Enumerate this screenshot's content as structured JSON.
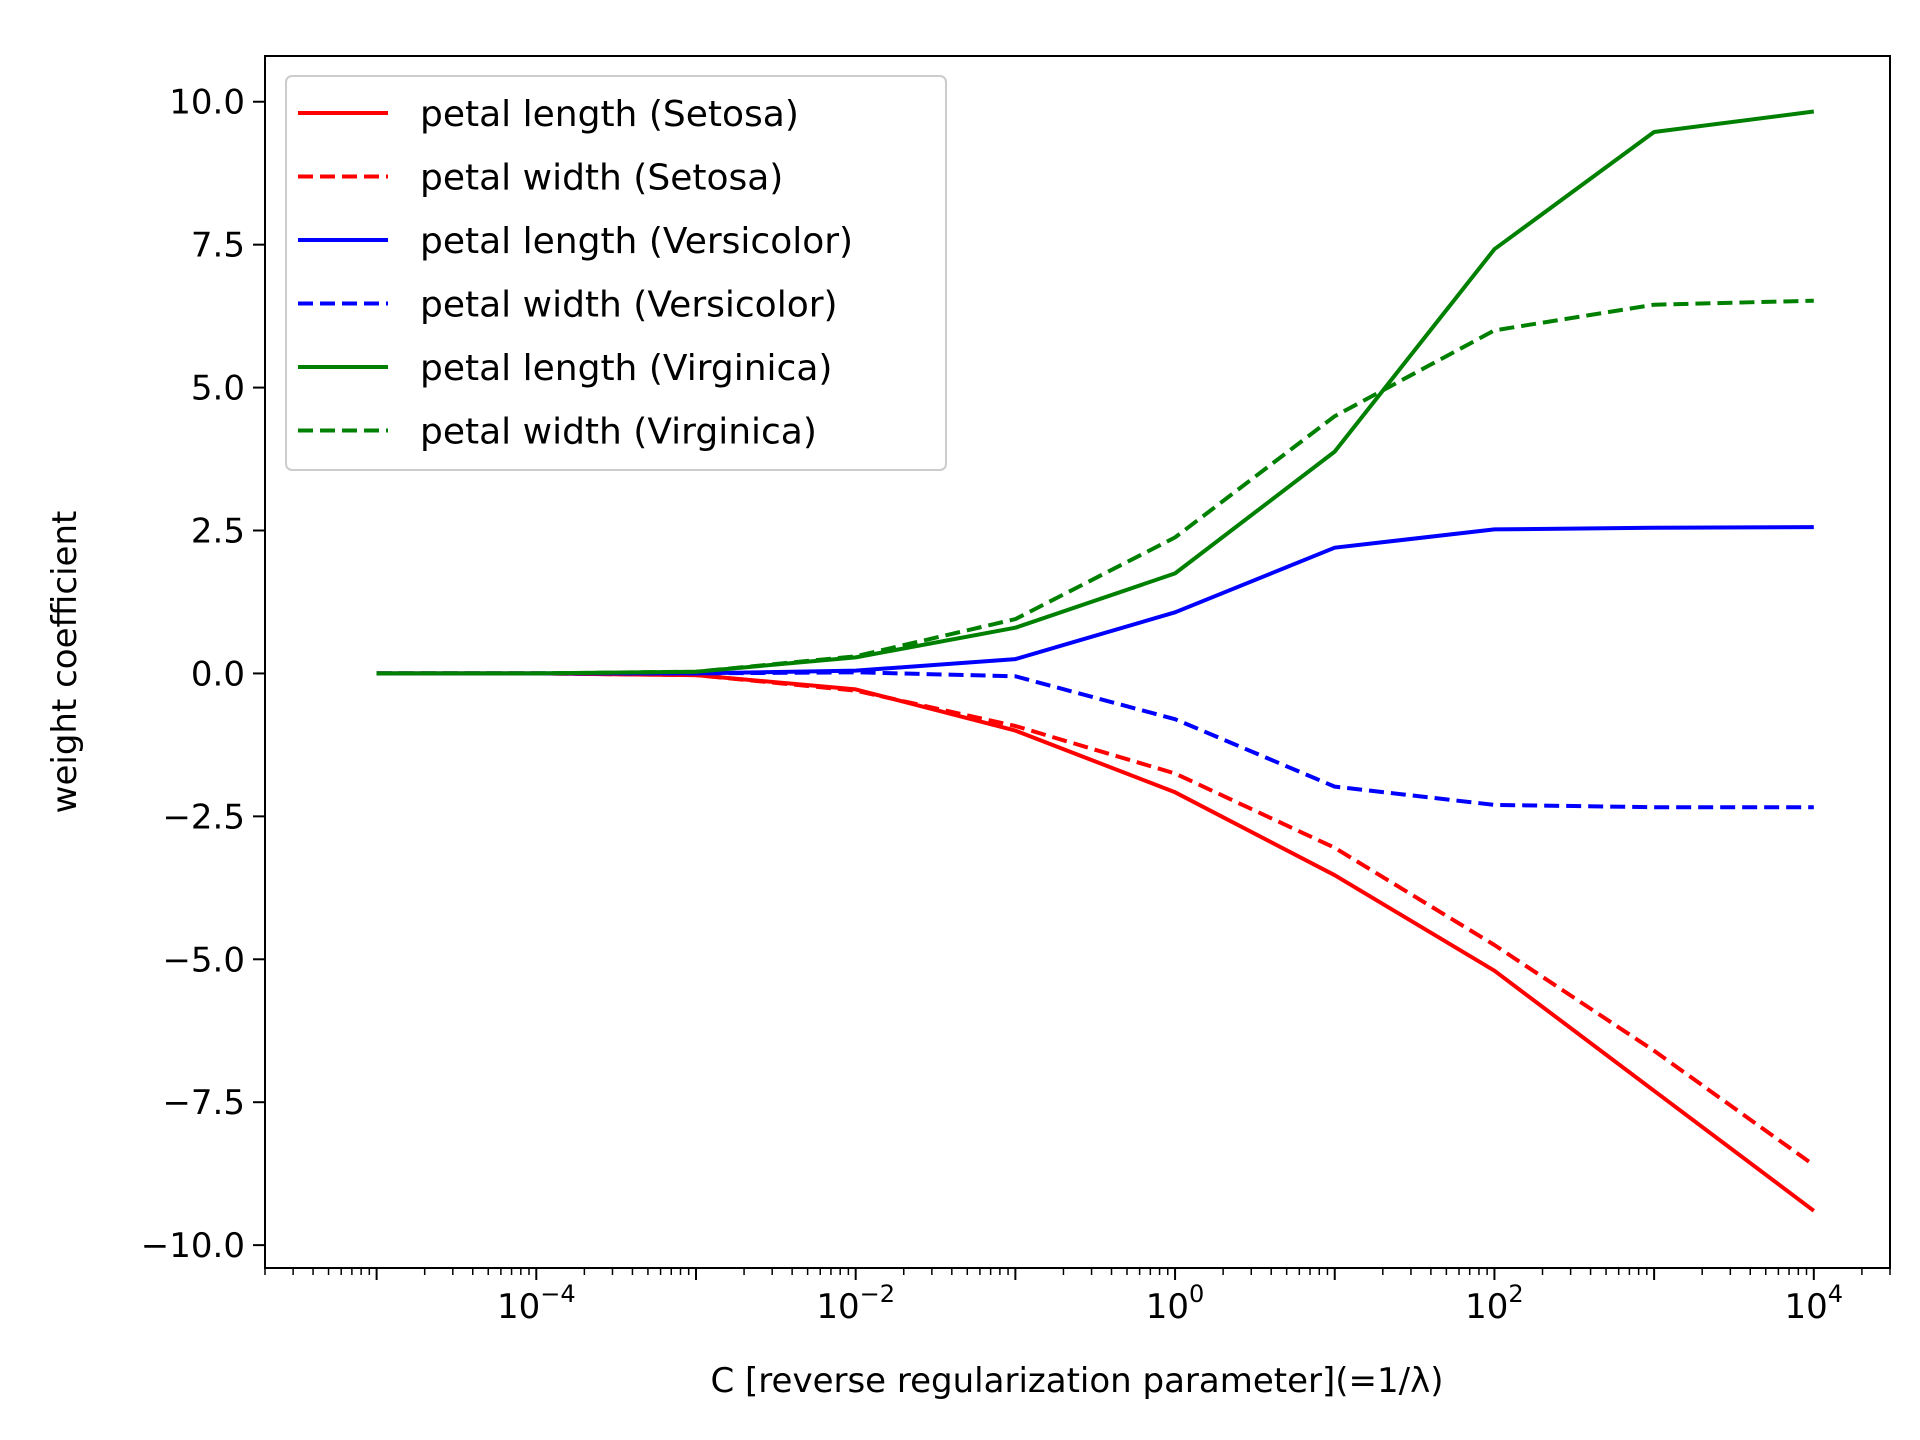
{
  "chart_data": {
    "type": "line",
    "xlabel": "C [reverse regularization parameter](=1/λ)",
    "ylabel": "weight coefficient",
    "xscale": "log",
    "xlim": [
      2e-06,
      30000
    ],
    "ylim": [
      -10.4,
      10.8
    ],
    "xticks": [
      {
        "value": 0.0001,
        "base": "10",
        "exp": "−4"
      },
      {
        "value": 0.01,
        "base": "10",
        "exp": "−2"
      },
      {
        "value": 1,
        "base": "10",
        "exp": "0"
      },
      {
        "value": 100,
        "base": "10",
        "exp": "2"
      },
      {
        "value": 10000,
        "base": "10",
        "exp": "4"
      }
    ],
    "yticks": [
      {
        "value": 10.0,
        "label": "10.0"
      },
      {
        "value": 7.5,
        "label": "7.5"
      },
      {
        "value": 5.0,
        "label": "5.0"
      },
      {
        "value": 2.5,
        "label": "2.5"
      },
      {
        "value": 0.0,
        "label": "0.0"
      },
      {
        "value": -2.5,
        "label": "−2.5"
      },
      {
        "value": -5.0,
        "label": "−5.0"
      },
      {
        "value": -7.5,
        "label": "−7.5"
      },
      {
        "value": -10.0,
        "label": "−10.0"
      }
    ],
    "grid": false,
    "legend_position": "upper-left",
    "x": [
      1e-05,
      0.0001,
      0.001,
      0.01,
      0.1,
      1,
      10,
      100,
      1000,
      10000
    ],
    "series": [
      {
        "name": "petal length (Setosa)",
        "color": "#ff0000",
        "dash": false,
        "values": [
          0.0,
          0.0,
          -0.03,
          -0.28,
          -1.0,
          -2.08,
          -3.53,
          -5.2,
          -7.3,
          -9.4
        ]
      },
      {
        "name": "petal width (Setosa)",
        "color": "#ff0000",
        "dash": true,
        "values": [
          0.0,
          0.0,
          -0.03,
          -0.3,
          -0.92,
          -1.75,
          -3.05,
          -4.75,
          -6.6,
          -8.6
        ]
      },
      {
        "name": "petal length (Versicolor)",
        "color": "#0000ff",
        "dash": false,
        "values": [
          0.0,
          0.0,
          0.0,
          0.05,
          0.25,
          1.07,
          2.2,
          2.52,
          2.55,
          2.56
        ]
      },
      {
        "name": "petal width (Versicolor)",
        "color": "#0000ff",
        "dash": true,
        "values": [
          0.0,
          0.0,
          0.0,
          0.02,
          -0.05,
          -0.8,
          -1.98,
          -2.3,
          -2.34,
          -2.34
        ]
      },
      {
        "name": "petal length (Virginica)",
        "color": "#008000",
        "dash": false,
        "values": [
          0.0,
          0.0,
          0.03,
          0.28,
          0.8,
          1.75,
          3.88,
          7.42,
          9.47,
          9.83
        ]
      },
      {
        "name": "petal width (Virginica)",
        "color": "#008000",
        "dash": true,
        "values": [
          0.0,
          0.0,
          0.03,
          0.3,
          0.95,
          2.38,
          4.5,
          6.0,
          6.45,
          6.52
        ]
      }
    ]
  }
}
